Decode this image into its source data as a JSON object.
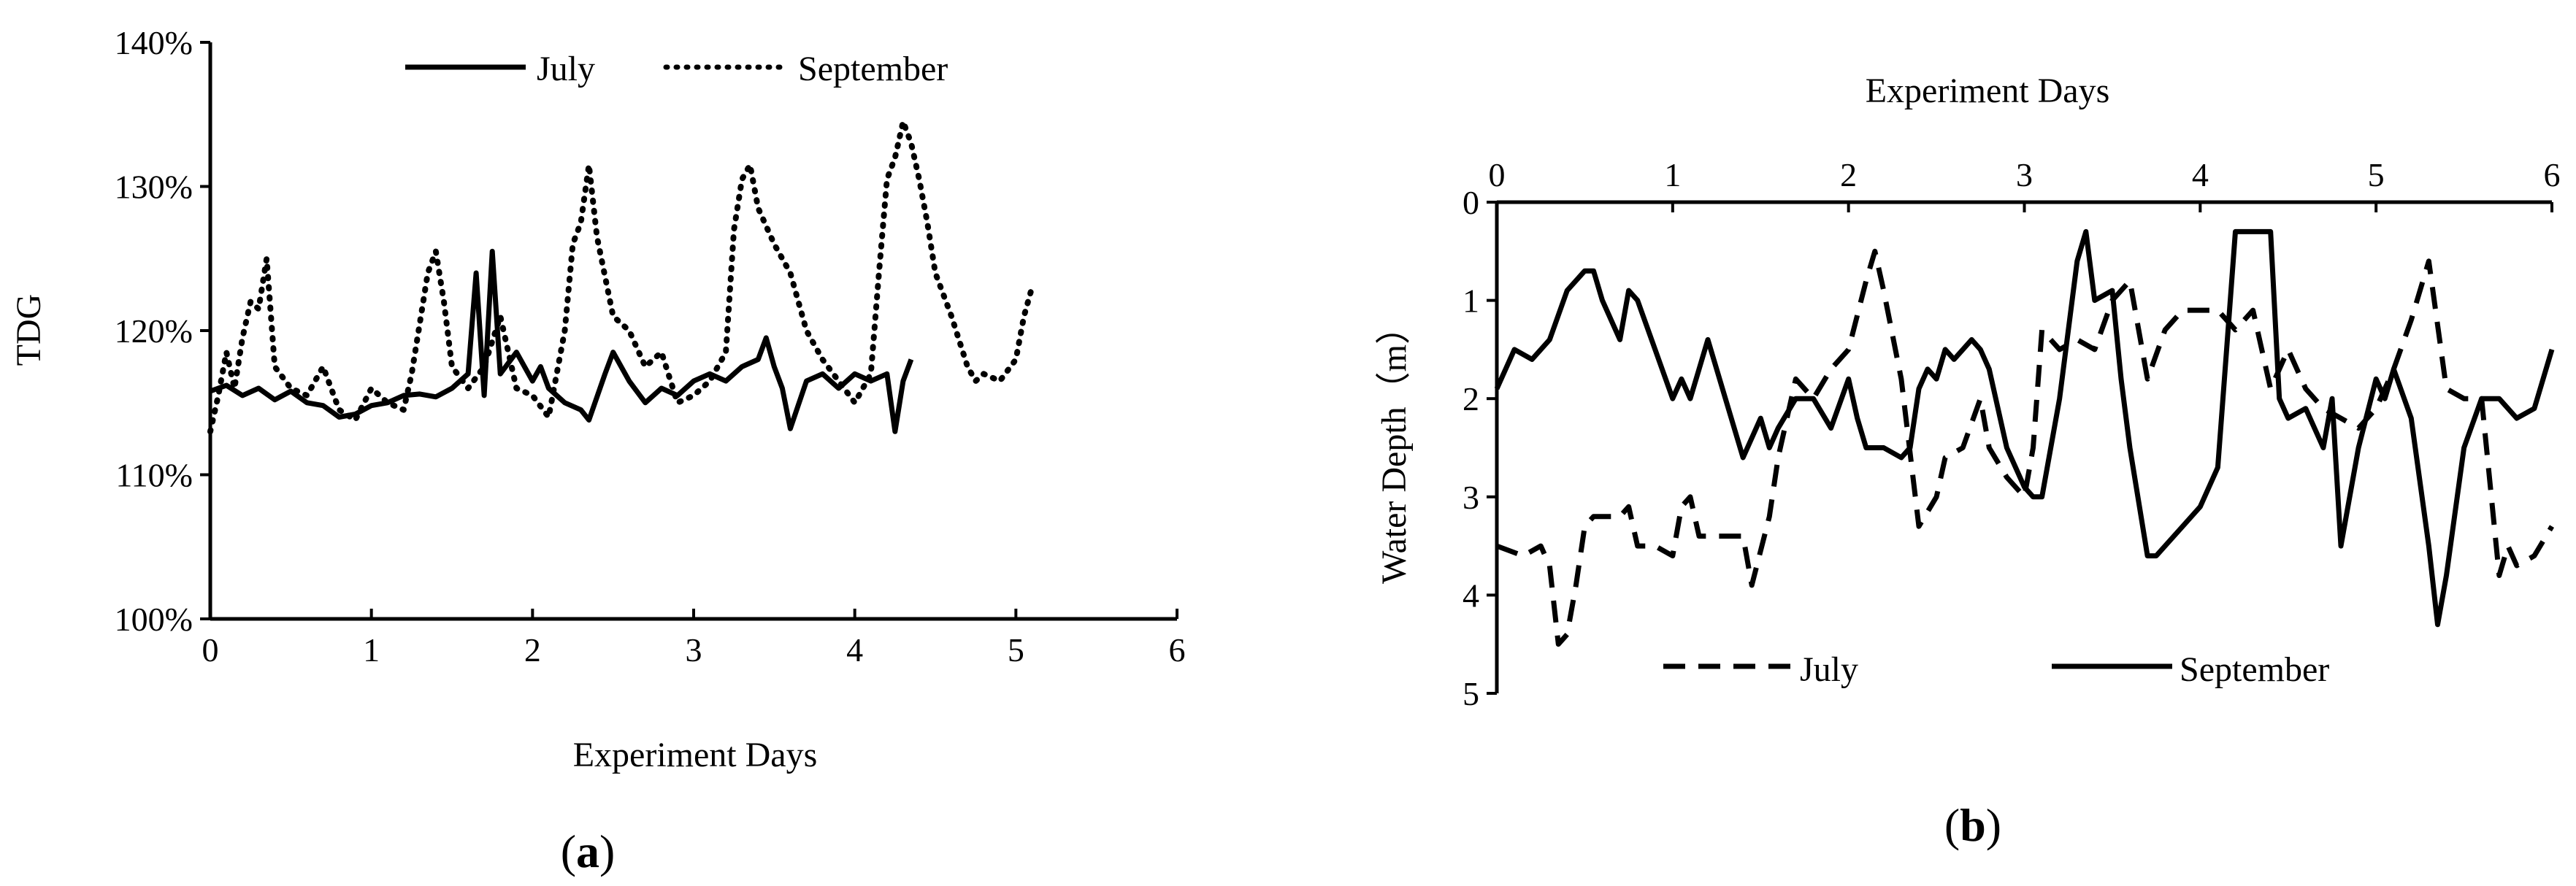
{
  "chart_data": [
    {
      "panel": "a",
      "panel_label_parts": [
        "(",
        "a",
        ")"
      ],
      "type": "line",
      "xlabel": "Experiment  Days",
      "ylabel": "TDG",
      "xlim": [
        0,
        6
      ],
      "ylim": [
        100,
        140
      ],
      "x_ticks": [
        0,
        1,
        2,
        3,
        4,
        5,
        6
      ],
      "x_tick_labels": [
        "0",
        "1",
        "2",
        "3",
        "4",
        "5",
        "6"
      ],
      "y_ticks": [
        100,
        110,
        120,
        130,
        140
      ],
      "y_tick_labels": [
        "100%",
        "110%",
        "120%",
        "130%",
        "140%"
      ],
      "legend": "top-center",
      "grid": false,
      "series": [
        {
          "name": "July",
          "style": "solid",
          "x": [
            0,
            0.1,
            0.2,
            0.3,
            0.4,
            0.5,
            0.6,
            0.7,
            0.8,
            0.9,
            1.0,
            1.1,
            1.2,
            1.3,
            1.4,
            1.5,
            1.6,
            1.65,
            1.7,
            1.75,
            1.8,
            1.9,
            2.0,
            2.05,
            2.1,
            2.2,
            2.3,
            2.35,
            2.45,
            2.5,
            2.6,
            2.7,
            2.8,
            2.9,
            3.0,
            3.1,
            3.2,
            3.3,
            3.4,
            3.45,
            3.5,
            3.55,
            3.6,
            3.7,
            3.8,
            3.9,
            4.0,
            4.1,
            4.2,
            4.25,
            4.3,
            4.35
          ],
          "y": [
            115.8,
            116.2,
            115.5,
            116.0,
            115.2,
            115.8,
            115.0,
            114.8,
            114.0,
            114.2,
            114.8,
            115.0,
            115.5,
            115.6,
            115.4,
            116.0,
            117.0,
            124.0,
            115.5,
            125.5,
            117.0,
            118.5,
            116.5,
            117.5,
            116.0,
            115.0,
            114.5,
            113.8,
            117.0,
            118.5,
            116.5,
            115.0,
            116.0,
            115.5,
            116.5,
            117.0,
            116.5,
            117.5,
            118.0,
            119.5,
            117.5,
            116.0,
            113.2,
            116.5,
            117.0,
            116.0,
            117.0,
            116.5,
            117.0,
            113.0,
            116.5,
            118.0
          ]
        },
        {
          "name": "September",
          "style": "dotted",
          "x": [
            0,
            0.05,
            0.1,
            0.15,
            0.2,
            0.25,
            0.3,
            0.35,
            0.4,
            0.5,
            0.6,
            0.7,
            0.8,
            0.9,
            1.0,
            1.1,
            1.2,
            1.25,
            1.3,
            1.35,
            1.4,
            1.45,
            1.5,
            1.6,
            1.7,
            1.8,
            1.9,
            2.0,
            2.1,
            2.2,
            2.25,
            2.3,
            2.35,
            2.4,
            2.5,
            2.6,
            2.7,
            2.8,
            2.9,
            3.0,
            3.1,
            3.2,
            3.25,
            3.3,
            3.35,
            3.4,
            3.5,
            3.6,
            3.7,
            3.8,
            3.9,
            4.0,
            4.1,
            4.15,
            4.2,
            4.25,
            4.3,
            4.35,
            4.4,
            4.45,
            4.5,
            4.6,
            4.7,
            4.75,
            4.8,
            4.9,
            5.0,
            5.05,
            5.1
          ],
          "y": [
            113.0,
            115.5,
            118.5,
            116.0,
            119.5,
            122.0,
            121.5,
            125.0,
            117.5,
            116.0,
            115.5,
            117.5,
            114.5,
            113.8,
            116.0,
            115.0,
            114.5,
            117.0,
            120.5,
            124.0,
            125.5,
            122.0,
            117.5,
            116.0,
            117.5,
            121.0,
            116.0,
            115.5,
            114.0,
            120.0,
            126.0,
            127.5,
            131.5,
            126.5,
            121.0,
            120.0,
            117.5,
            118.5,
            115.0,
            115.5,
            116.5,
            118.5,
            127.0,
            130.5,
            131.5,
            128.5,
            126.0,
            124.0,
            120.0,
            118.0,
            116.5,
            115.0,
            117.0,
            124.0,
            130.5,
            132.0,
            134.5,
            133.0,
            130.5,
            127.5,
            124.0,
            121.0,
            117.5,
            116.5,
            117.0,
            116.5,
            118.0,
            121.0,
            123.0
          ]
        }
      ]
    },
    {
      "panel": "b",
      "panel_label_parts": [
        "(",
        "b",
        ")"
      ],
      "type": "line",
      "xlabel": "Experiment  Days",
      "ylabel": "Water Depth（m）",
      "xlim": [
        0,
        6
      ],
      "ylim": [
        0,
        5
      ],
      "y_inverted": true,
      "x_axis_position": "top",
      "x_ticks": [
        0,
        1,
        2,
        3,
        4,
        5,
        6
      ],
      "x_tick_labels": [
        "0",
        "1",
        "2",
        "3",
        "4",
        "5",
        "6"
      ],
      "y_ticks": [
        0,
        1,
        2,
        3,
        4,
        5
      ],
      "y_tick_labels": [
        "0",
        "1",
        "2",
        "3",
        "4",
        "5"
      ],
      "legend": "bottom",
      "grid": false,
      "series": [
        {
          "name": "July",
          "style": "dashed",
          "x": [
            0,
            0.15,
            0.25,
            0.3,
            0.35,
            0.4,
            0.45,
            0.5,
            0.55,
            0.7,
            0.75,
            0.8,
            0.9,
            1.0,
            1.05,
            1.1,
            1.15,
            1.2,
            1.3,
            1.4,
            1.45,
            1.55,
            1.6,
            1.7,
            1.8,
            1.9,
            2.0,
            2.1,
            2.15,
            2.2,
            2.3,
            2.4,
            2.5,
            2.55,
            2.65,
            2.75,
            2.8,
            2.9,
            3.0,
            3.05,
            3.1,
            3.2,
            3.3,
            3.4,
            3.5,
            3.6,
            3.7,
            3.8,
            3.9,
            4.0,
            4.1,
            4.2,
            4.3,
            4.4,
            4.5,
            4.6,
            4.7,
            4.8,
            4.9,
            5.0,
            5.1,
            5.2,
            5.3,
            5.4,
            5.5,
            5.6,
            5.7,
            5.75,
            5.8,
            5.9,
            6.0
          ],
          "y": [
            3.5,
            3.6,
            3.5,
            3.7,
            4.5,
            4.4,
            3.9,
            3.3,
            3.2,
            3.2,
            3.1,
            3.5,
            3.5,
            3.6,
            3.1,
            3.0,
            3.4,
            3.4,
            3.4,
            3.4,
            3.9,
            3.2,
            2.6,
            1.8,
            2.0,
            1.7,
            1.5,
            0.8,
            0.5,
            0.9,
            1.8,
            3.3,
            3.0,
            2.6,
            2.5,
            2.0,
            2.5,
            2.8,
            3.0,
            2.5,
            1.3,
            1.5,
            1.4,
            1.5,
            1.0,
            0.8,
            1.8,
            1.3,
            1.1,
            1.1,
            1.1,
            1.3,
            1.1,
            1.9,
            1.5,
            1.9,
            2.1,
            2.2,
            2.3,
            2.1,
            1.7,
            1.2,
            0.6,
            1.9,
            2.0,
            2.0,
            3.8,
            3.5,
            3.7,
            3.6,
            3.3
          ]
        },
        {
          "name": "September",
          "style": "solid",
          "x": [
            0,
            0.1,
            0.2,
            0.3,
            0.4,
            0.5,
            0.55,
            0.6,
            0.7,
            0.75,
            0.8,
            0.9,
            1.0,
            1.05,
            1.1,
            1.15,
            1.2,
            1.3,
            1.4,
            1.5,
            1.55,
            1.6,
            1.7,
            1.8,
            1.9,
            2.0,
            2.05,
            2.1,
            2.2,
            2.3,
            2.35,
            2.4,
            2.45,
            2.5,
            2.55,
            2.6,
            2.7,
            2.75,
            2.8,
            2.9,
            3.0,
            3.05,
            3.1,
            3.2,
            3.3,
            3.35,
            3.4,
            3.5,
            3.55,
            3.6,
            3.7,
            3.75,
            3.8,
            3.9,
            4.0,
            4.1,
            4.15,
            4.2,
            4.25,
            4.3,
            4.4,
            4.45,
            4.5,
            4.6,
            4.7,
            4.75,
            4.8,
            4.9,
            5.0,
            5.05,
            5.1,
            5.2,
            5.3,
            5.35,
            5.4,
            5.5,
            5.6,
            5.7,
            5.8,
            5.9,
            6.0
          ],
          "y": [
            1.9,
            1.5,
            1.6,
            1.4,
            0.9,
            0.7,
            0.7,
            1.0,
            1.4,
            0.9,
            1.0,
            1.5,
            2.0,
            1.8,
            2.0,
            1.7,
            1.4,
            2.0,
            2.6,
            2.2,
            2.5,
            2.3,
            2.0,
            2.0,
            2.3,
            1.8,
            2.2,
            2.5,
            2.5,
            2.6,
            2.5,
            1.9,
            1.7,
            1.8,
            1.5,
            1.6,
            1.4,
            1.5,
            1.7,
            2.5,
            2.9,
            3.0,
            3.0,
            2.0,
            0.6,
            0.3,
            1.0,
            0.9,
            1.8,
            2.5,
            3.6,
            3.6,
            3.5,
            3.3,
            3.1,
            2.7,
            1.5,
            0.3,
            0.3,
            0.3,
            0.3,
            2.0,
            2.2,
            2.1,
            2.5,
            2.0,
            3.5,
            2.5,
            1.8,
            2.0,
            1.7,
            2.2,
            3.5,
            4.3,
            3.8,
            2.5,
            2.0,
            2.0,
            2.2,
            2.1,
            1.5
          ]
        }
      ]
    }
  ]
}
